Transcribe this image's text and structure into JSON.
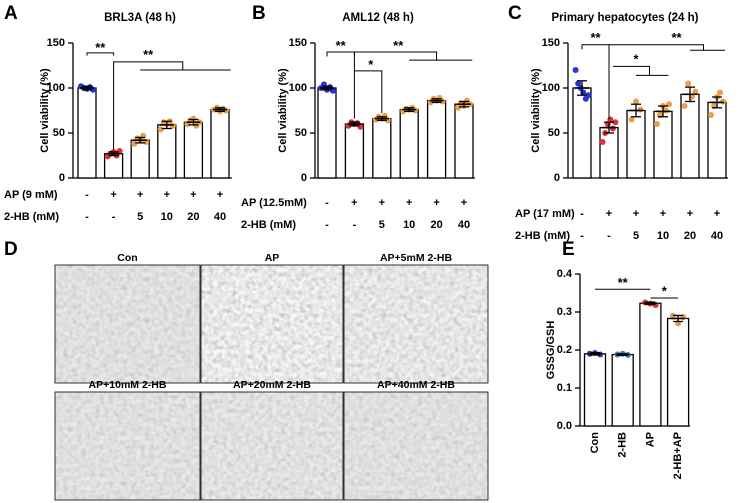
{
  "chart_data": [
    {
      "type": "bar",
      "panel": "A",
      "title": "BRL3A (48 h)",
      "y_label": "Cell viability (%)",
      "ylim": [
        0,
        150
      ],
      "yticks": [
        0,
        50,
        100,
        150
      ],
      "rows": [
        {
          "label": "AP (9 mM)",
          "values": [
            "-",
            "+",
            "+",
            "+",
            "+",
            "+"
          ]
        },
        {
          "label": "2-HB (mM)",
          "values": [
            "-",
            "-",
            "5",
            "10",
            "20",
            "40"
          ]
        }
      ],
      "values": [
        100,
        27,
        42,
        59,
        62,
        76
      ],
      "errors": [
        2,
        2,
        3,
        4,
        3,
        2
      ],
      "points": [
        [
          102,
          100,
          99,
          101,
          98
        ],
        [
          24,
          27,
          29,
          25,
          30
        ],
        [
          38,
          44,
          42,
          47,
          40
        ],
        [
          54,
          62,
          60,
          63,
          58
        ],
        [
          60,
          64,
          66,
          58,
          62
        ],
        [
          76,
          78,
          74,
          77,
          75
        ]
      ],
      "point_colors": [
        "#2437d6",
        "#d9323c",
        "#e8a04a",
        "#e8a04a",
        "#e8a04a",
        "#e8a04a"
      ],
      "annotations": [
        "**",
        "**"
      ]
    },
    {
      "type": "bar",
      "panel": "B",
      "title": "AML12 (48 h)",
      "y_label": "Cell viability (%)",
      "ylim": [
        0,
        150
      ],
      "yticks": [
        0,
        50,
        100,
        150
      ],
      "rows": [
        {
          "label": "AP (12.5mM)",
          "values": [
            "-",
            "+",
            "+",
            "+",
            "+",
            "+"
          ]
        },
        {
          "label": "2-HB (mM)",
          "values": [
            "-",
            "-",
            "5",
            "10",
            "20",
            "40"
          ]
        }
      ],
      "values": [
        100,
        60,
        66,
        76,
        86,
        82
      ],
      "errors": [
        2,
        2,
        2,
        2,
        2,
        3
      ],
      "points": [
        [
          100,
          104,
          98,
          101,
          97
        ],
        [
          58,
          62,
          60,
          61,
          57
        ],
        [
          65,
          68,
          66,
          69,
          64
        ],
        [
          74,
          77,
          76,
          78,
          75
        ],
        [
          84,
          88,
          86,
          89,
          85
        ],
        [
          78,
          83,
          80,
          86,
          82
        ]
      ],
      "point_colors": [
        "#2437d6",
        "#d9323c",
        "#e8a04a",
        "#e8a04a",
        "#e8a04a",
        "#e8a04a"
      ],
      "annotations": [
        "**",
        "*",
        "**"
      ]
    },
    {
      "type": "bar",
      "panel": "C",
      "title": "Primary hepatocytes (24 h)",
      "y_label": "Cell viability (%)",
      "ylim": [
        0,
        150
      ],
      "yticks": [
        0,
        50,
        100,
        150
      ],
      "rows": [
        {
          "label": "AP (17 mM)",
          "values": [
            "-",
            "+",
            "+",
            "+",
            "+",
            "+"
          ]
        },
        {
          "label": "2-HB (mM)",
          "values": [
            "-",
            "-",
            "5",
            "10",
            "20",
            "40"
          ]
        }
      ],
      "values": [
        100,
        56,
        75,
        74,
        93,
        84
      ],
      "errors": [
        8,
        6,
        7,
        6,
        8,
        6
      ],
      "points": [
        [
          120,
          105,
          100,
          95,
          88,
          92
        ],
        [
          40,
          50,
          60,
          65,
          55,
          62
        ],
        [
          65,
          85,
          76
        ],
        [
          60,
          70,
          80,
          75,
          82
        ],
        [
          80,
          105,
          90,
          96
        ],
        [
          70,
          80,
          90,
          95,
          85
        ]
      ],
      "point_colors": [
        "#2437d6",
        "#d9323c",
        "#e8a04a",
        "#e8a04a",
        "#e8a04a",
        "#e8a04a"
      ],
      "annotations": [
        "**",
        "*",
        "**"
      ]
    },
    {
      "type": "bar",
      "panel": "E",
      "y_label": "GSSG/GSH",
      "ylim": [
        0,
        0.4
      ],
      "yticks": [
        {
          "value": 0,
          "label": "0.0"
        },
        0.1,
        0.2,
        0.3,
        0.4
      ],
      "categories": [
        "Con",
        "2-HB",
        "AP",
        "2-HB+AP"
      ],
      "values": [
        0.19,
        0.188,
        0.323,
        0.283
      ],
      "errors": [
        0.003,
        0.002,
        0.003,
        0.008
      ],
      "points": [
        [
          0.19,
          0.192,
          0.188
        ],
        [
          0.188,
          0.19,
          0.187
        ],
        [
          0.325,
          0.322,
          0.318
        ],
        [
          0.29,
          0.27,
          0.287
        ]
      ],
      "point_colors": [
        "#2f3fa8",
        "#3a7fb5",
        "#d9323c",
        "#e8a04a"
      ],
      "annotations": [
        "**",
        "*"
      ]
    }
  ],
  "panel_d": {
    "panel": "D",
    "captions": [
      "Con",
      "AP",
      "AP+5mM 2-HB",
      "AP+10mM 2-HB",
      "AP+20mM 2-HB",
      "AP+40mM 2-HB"
    ]
  }
}
